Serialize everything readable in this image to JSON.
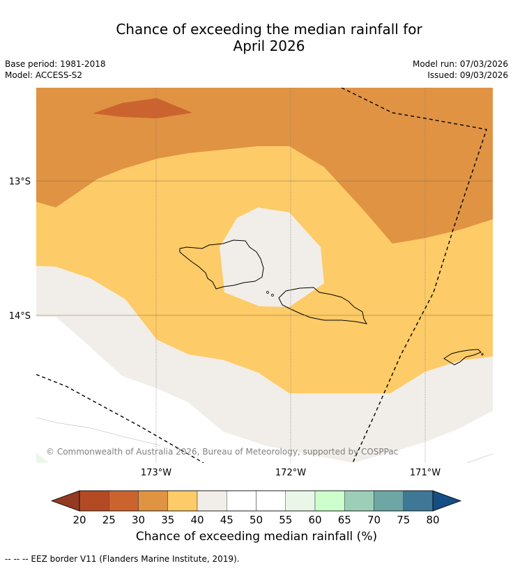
{
  "title_line1": "Chance of exceeding the median rainfall for",
  "title_line2": "April 2026",
  "base_period": "Base period: 1981-2018",
  "model": "Model: ACCESS-S2",
  "model_run": "Model run: 07/03/2026",
  "issued": "Issued: 09/03/2026",
  "copyright": "© Commonwealth of Australia 2026, Bureau of Meteorology, supported by COSPPac",
  "lat_labels": [
    "13°S",
    "14°S"
  ],
  "lon_labels": [
    "173°W",
    "172°W",
    "171°W"
  ],
  "colorbar": {
    "title": "Chance of exceeding median rainfall (%)",
    "ticks": [
      "20",
      "25",
      "30",
      "35",
      "40",
      "45",
      "50",
      "55",
      "60",
      "65",
      "70",
      "75",
      "80"
    ],
    "colors": [
      "#b34a24",
      "#cb632f",
      "#e09343",
      "#fdcb67",
      "#f1ede8",
      "#ffffff",
      "#ffffff",
      "#eaf6e8",
      "#ccffcc",
      "#9dcfb8",
      "#6da6a5",
      "#3f7797"
    ],
    "low_extend_color": "#933a21",
    "high_extend_color": "#154e84"
  },
  "legend_note": "--  --  -- EEZ border V11 (Flanders Marine Institute, 2019)."
}
